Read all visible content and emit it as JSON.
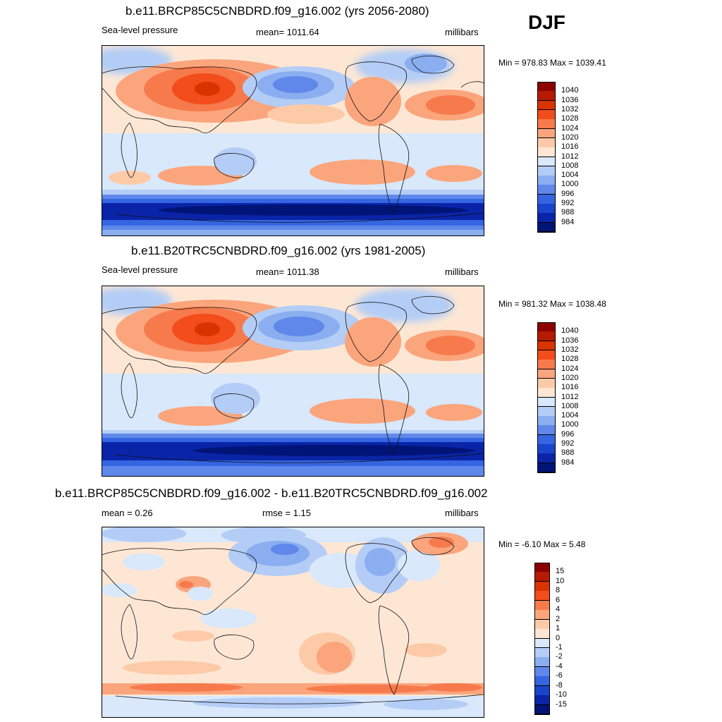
{
  "season": "DJF",
  "panels": [
    {
      "title": "b.e11.BRCP85C5CNBDRD.f09_g16.002 (yrs 2056-2080)",
      "left_label": "Sea-level pressure",
      "center_label": "mean= 1011.64",
      "units": "millibars",
      "minmax": "Min = 978.83 Max = 1039.41",
      "colorbar": {
        "labels": [
          "1040",
          "1036",
          "1032",
          "1028",
          "1024",
          "1020",
          "1016",
          "1012",
          "1008",
          "1004",
          "1000",
          "996",
          "992",
          "988",
          "984"
        ],
        "colors": [
          "#8b0000",
          "#b81a00",
          "#d93300",
          "#f24d1a",
          "#f77a4d",
          "#fba57d",
          "#fdcaa8",
          "#fde7d4",
          "#d9e8fb",
          "#b4cdf6",
          "#8aaef0",
          "#5f88ea",
          "#3565e0",
          "#1a44cc",
          "#0a24a8",
          "#001478"
        ]
      }
    },
    {
      "title": "b.e11.B20TRC5CNBDRD.f09_g16.002 (yrs 1981-2005)",
      "left_label": "Sea-level pressure",
      "center_label": "mean= 1011.38",
      "units": "millibars",
      "minmax": "Min = 981.32 Max = 1038.48",
      "colorbar": {
        "labels": [
          "1040",
          "1036",
          "1032",
          "1028",
          "1024",
          "1020",
          "1016",
          "1012",
          "1008",
          "1004",
          "1000",
          "996",
          "992",
          "988",
          "984"
        ],
        "colors": [
          "#8b0000",
          "#b81a00",
          "#d93300",
          "#f24d1a",
          "#f77a4d",
          "#fba57d",
          "#fdcaa8",
          "#fde7d4",
          "#d9e8fb",
          "#b4cdf6",
          "#8aaef0",
          "#5f88ea",
          "#3565e0",
          "#1a44cc",
          "#0a24a8",
          "#001478"
        ]
      }
    },
    {
      "title": "b.e11.BRCP85C5CNBDRD.f09_g16.002 - b.e11.B20TRC5CNBDRD.f09_g16.002",
      "left_label": "mean =   0.26",
      "center_label": "rmse =   1.15",
      "units": "millibars",
      "minmax": "Min =  -6.10 Max =   5.48",
      "colorbar": {
        "labels": [
          "15",
          "10",
          "8",
          "6",
          "4",
          "2",
          "1",
          "0",
          "-1",
          "-2",
          "-4",
          "-6",
          "-8",
          "-10",
          "-15"
        ],
        "colors": [
          "#8b0000",
          "#b81a00",
          "#d93300",
          "#f24d1a",
          "#f77a4d",
          "#fba57d",
          "#fdcaa8",
          "#fde7d4",
          "#d9e8fb",
          "#b4cdf6",
          "#8aaef0",
          "#5f88ea",
          "#3565e0",
          "#1a44cc",
          "#0a24a8",
          "#001478"
        ]
      }
    }
  ]
}
